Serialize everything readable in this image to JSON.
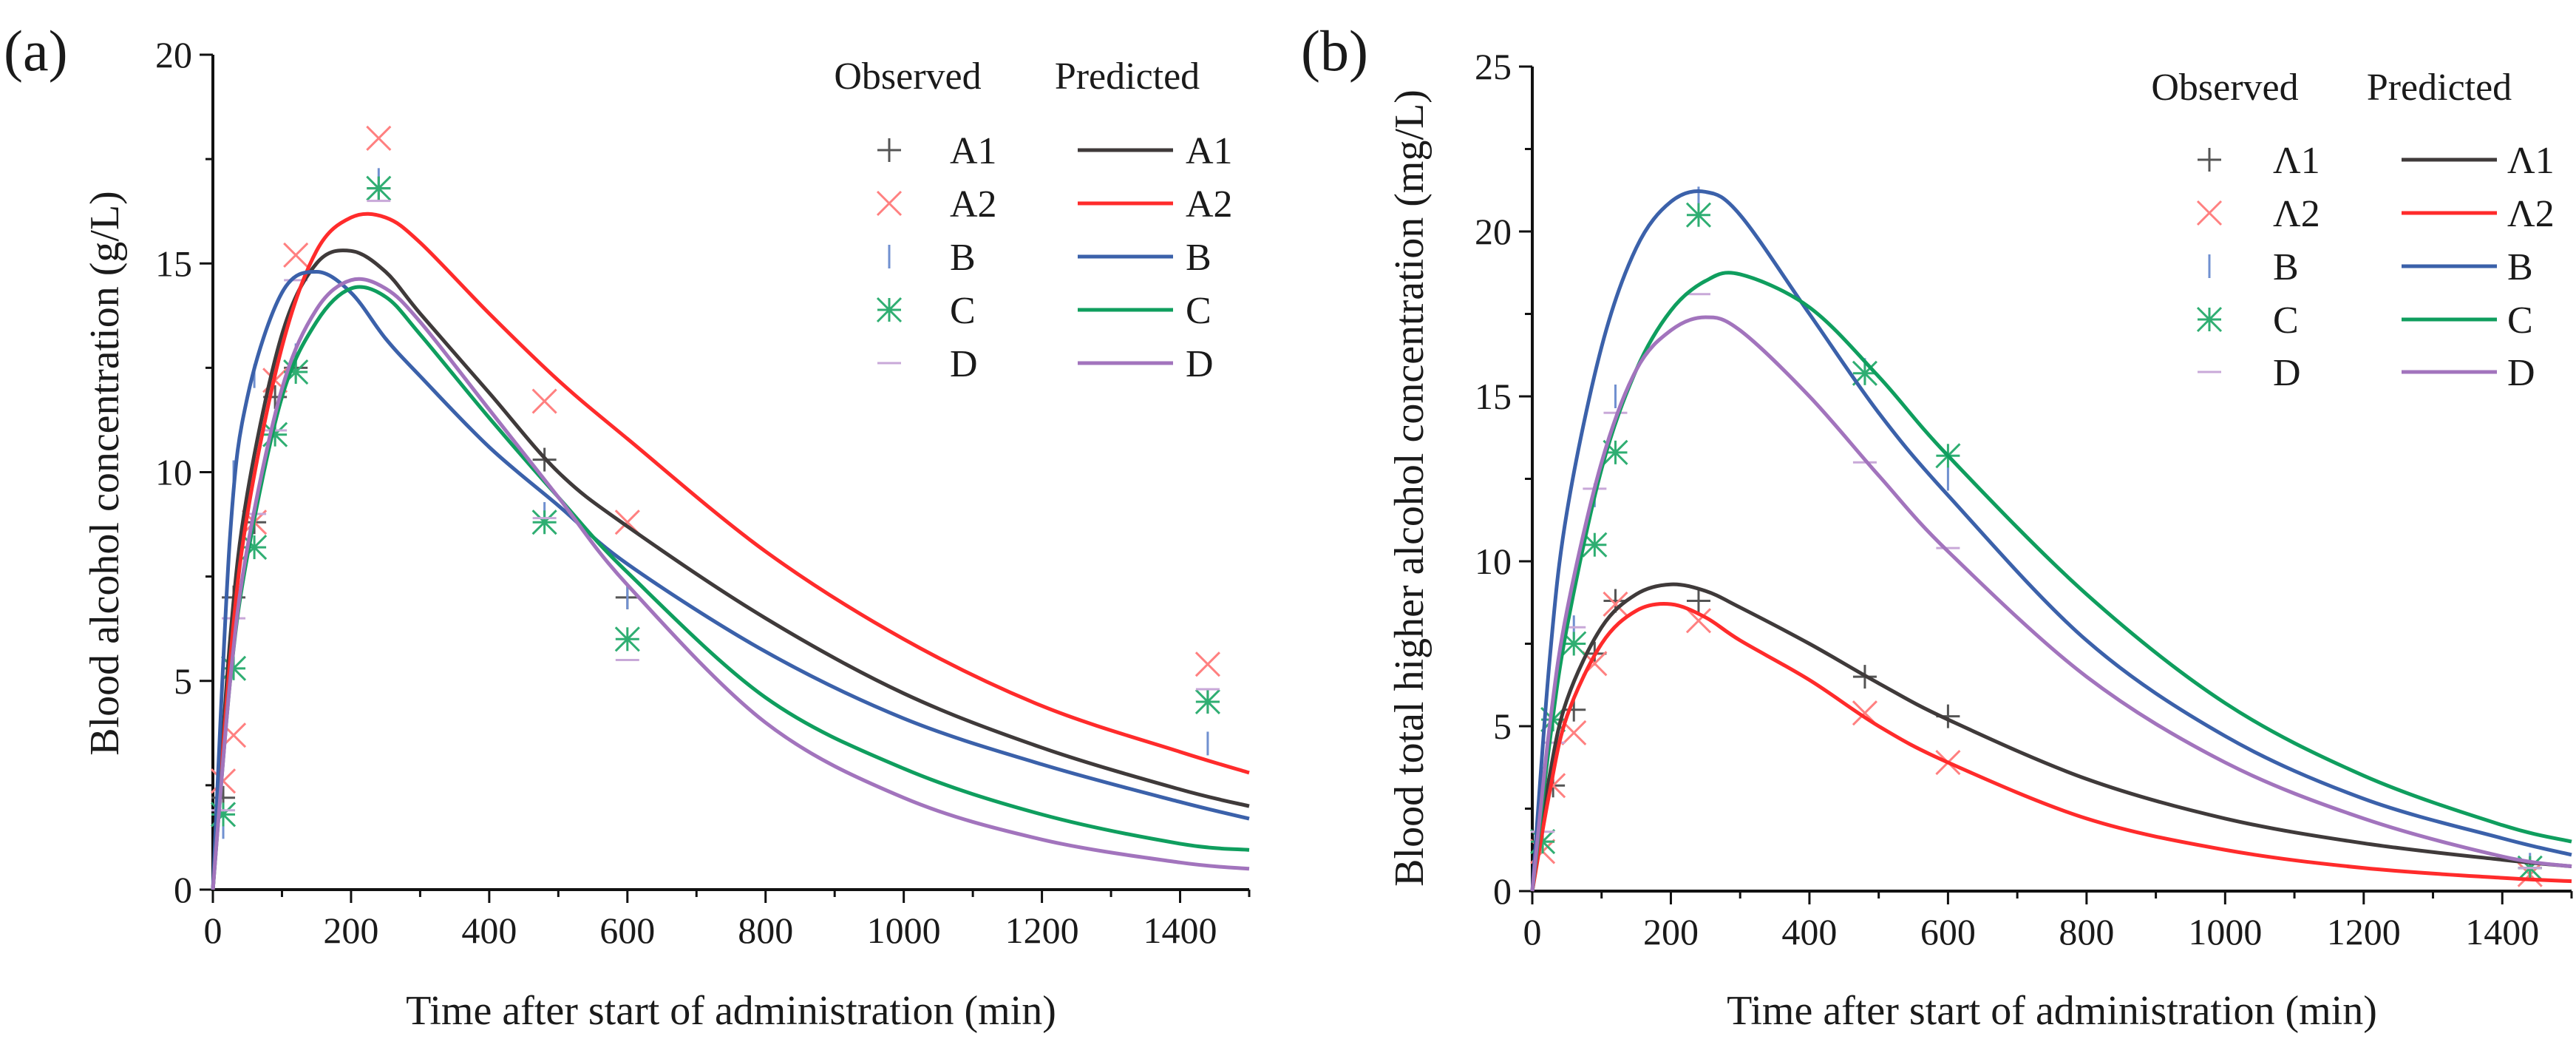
{
  "colors": {
    "A1": "#3f3a3a",
    "A2": "#ff2b2b",
    "B": "#3b61aa",
    "C": "#0f9e5e",
    "D": "#a274bd",
    "A1_obs": "#555555",
    "A2_obs": "#ff8080",
    "B_obs": "#7090d0",
    "C_obs": "#2fae72",
    "D_obs": "#c8a8d8"
  },
  "chart_data": [
    {
      "type": "line",
      "panel_label": "(a)",
      "xlabel": "Time after start of administration (min)",
      "ylabel": "Blood alcohol concentration (g/L)",
      "xlim": [
        0,
        1500
      ],
      "ylim": [
        0,
        20
      ],
      "xticks": [
        0,
        200,
        400,
        600,
        800,
        1000,
        1200,
        1400
      ],
      "yticks": [
        0,
        5,
        10,
        15,
        20
      ],
      "legend": {
        "observed_title": "Observed",
        "predicted_title": "Predicted",
        "placement": "top-right",
        "labels": [
          "A1",
          "A2",
          "B",
          "C",
          "D"
        ],
        "pred_labels": [
          "A1",
          "A2",
          "B",
          "C",
          "D"
        ]
      },
      "predicted_x": [
        0,
        25,
        50,
        100,
        150,
        200,
        250,
        300,
        400,
        500,
        600,
        800,
        1000,
        1200,
        1400,
        1500
      ],
      "predicted": [
        {
          "name": "A1",
          "values": [
            0,
            6.0,
            9.5,
            13.3,
            15.0,
            15.3,
            14.8,
            13.8,
            11.9,
            10.0,
            8.7,
            6.5,
            4.7,
            3.4,
            2.4,
            2.0
          ]
        },
        {
          "name": "A2",
          "values": [
            0,
            5.5,
            9.0,
            13.0,
            15.3,
            16.1,
            16.1,
            15.5,
            13.8,
            12.2,
            10.8,
            8.1,
            6.0,
            4.4,
            3.3,
            2.8
          ]
        },
        {
          "name": "B",
          "values": [
            0,
            8.5,
            11.8,
            14.3,
            14.8,
            14.3,
            13.2,
            12.3,
            10.6,
            9.2,
            7.8,
            5.7,
            4.1,
            3.0,
            2.1,
            1.7
          ]
        },
        {
          "name": "C",
          "values": [
            0,
            5.0,
            8.0,
            11.8,
            13.6,
            14.4,
            14.2,
            13.3,
            11.3,
            9.4,
            7.6,
            4.6,
            2.9,
            1.8,
            1.1,
            0.95
          ]
        },
        {
          "name": "D",
          "values": [
            0,
            5.0,
            8.2,
            12.0,
            13.9,
            14.6,
            14.4,
            13.6,
            11.5,
            9.4,
            7.3,
            4.0,
            2.2,
            1.2,
            0.65,
            0.5
          ]
        }
      ],
      "observed_x": [
        15,
        30,
        60,
        90,
        120,
        240,
        480,
        600,
        1440
      ],
      "observed": [
        {
          "name": "A1",
          "marker": "plus",
          "values": [
            2.2,
            7.0,
            8.8,
            11.8,
            12.5,
            16.8,
            10.3,
            7.0,
            4.5
          ]
        },
        {
          "name": "A2",
          "marker": "x",
          "values": [
            2.6,
            3.7,
            8.8,
            12.2,
            15.2,
            18.0,
            11.7,
            8.8,
            5.4
          ]
        },
        {
          "name": "B",
          "marker": "vbar",
          "values": [
            1.5,
            10.0,
            12.3,
            11.0,
            12.8,
            17.0,
            9.0,
            7.0,
            3.5
          ]
        },
        {
          "name": "C",
          "marker": "asterisk",
          "values": [
            1.8,
            5.3,
            8.2,
            10.9,
            12.4,
            16.8,
            8.8,
            6.0,
            4.5
          ]
        },
        {
          "name": "D",
          "marker": "hbar",
          "values": [
            1.9,
            6.5,
            9.0,
            11.0,
            14.6,
            16.5,
            8.9,
            5.5,
            4.8
          ]
        }
      ]
    },
    {
      "type": "line",
      "panel_label": "(b)",
      "xlabel": "Time after start of administration (min)",
      "ylabel": "Blood total higher alcohol concentration (mg/L)",
      "xlim": [
        0,
        1500
      ],
      "ylim": [
        0,
        25
      ],
      "xticks": [
        0,
        200,
        400,
        600,
        800,
        1000,
        1200,
        1400
      ],
      "yticks": [
        0,
        5,
        10,
        15,
        20,
        25
      ],
      "legend": {
        "observed_title": "Observed",
        "predicted_title": "Predicted",
        "placement": "top-right",
        "labels": [
          "Λ1",
          "Λ2",
          "B",
          "C",
          "D"
        ],
        "pred_labels": [
          "Λ1",
          "Λ2",
          "B",
          "C",
          "D"
        ]
      },
      "predicted_x": [
        0,
        25,
        50,
        100,
        150,
        200,
        250,
        300,
        400,
        500,
        600,
        800,
        1000,
        1200,
        1400,
        1500
      ],
      "predicted": [
        {
          "name": "A1",
          "values": [
            0,
            3.5,
            5.8,
            8.0,
            9.0,
            9.3,
            9.1,
            8.6,
            7.5,
            6.3,
            5.2,
            3.4,
            2.2,
            1.45,
            0.95,
            0.75
          ]
        },
        {
          "name": "A2",
          "values": [
            0,
            3.0,
            5.3,
            7.5,
            8.5,
            8.7,
            8.3,
            7.6,
            6.4,
            5.0,
            3.9,
            2.2,
            1.25,
            0.7,
            0.4,
            0.3
          ]
        },
        {
          "name": "B",
          "values": [
            0,
            7.0,
            11.5,
            16.5,
            19.5,
            20.9,
            21.2,
            20.5,
            17.5,
            14.5,
            12.0,
            7.6,
            4.7,
            2.8,
            1.6,
            1.1
          ]
        },
        {
          "name": "C",
          "values": [
            0,
            4.5,
            8.0,
            12.8,
            15.8,
            17.6,
            18.5,
            18.7,
            17.7,
            15.6,
            13.2,
            9.0,
            5.7,
            3.5,
            2.0,
            1.5
          ]
        },
        {
          "name": "D",
          "values": [
            0,
            5.0,
            8.5,
            13.0,
            15.8,
            17.0,
            17.4,
            17.0,
            15.0,
            12.6,
            10.3,
            6.5,
            3.9,
            2.2,
            1.05,
            0.75
          ]
        }
      ],
      "observed_x": [
        15,
        30,
        60,
        90,
        120,
        240,
        480,
        600,
        1440
      ],
      "observed": [
        {
          "name": "A1",
          "marker": "plus",
          "values": [
            1.5,
            3.2,
            5.5,
            7.2,
            8.8,
            8.8,
            6.5,
            5.3,
            0.7
          ]
        },
        {
          "name": "A2",
          "marker": "x",
          "values": [
            1.2,
            3.2,
            4.8,
            6.9,
            8.7,
            8.2,
            5.4,
            3.9,
            0.5
          ]
        },
        {
          "name": "B",
          "marker": "vbar",
          "values": [
            2.0,
            5.5,
            8.0,
            12.0,
            15.0,
            21.0,
            15.8,
            12.5,
            0.8
          ]
        },
        {
          "name": "C",
          "marker": "asterisk",
          "values": [
            1.5,
            5.2,
            7.5,
            10.5,
            13.3,
            20.5,
            15.7,
            13.2,
            0.7
          ]
        },
        {
          "name": "D",
          "marker": "hbar",
          "values": [
            1.8,
            4.5,
            8.0,
            12.2,
            14.5,
            18.1,
            13.0,
            10.4,
            0.7
          ]
        }
      ]
    }
  ]
}
